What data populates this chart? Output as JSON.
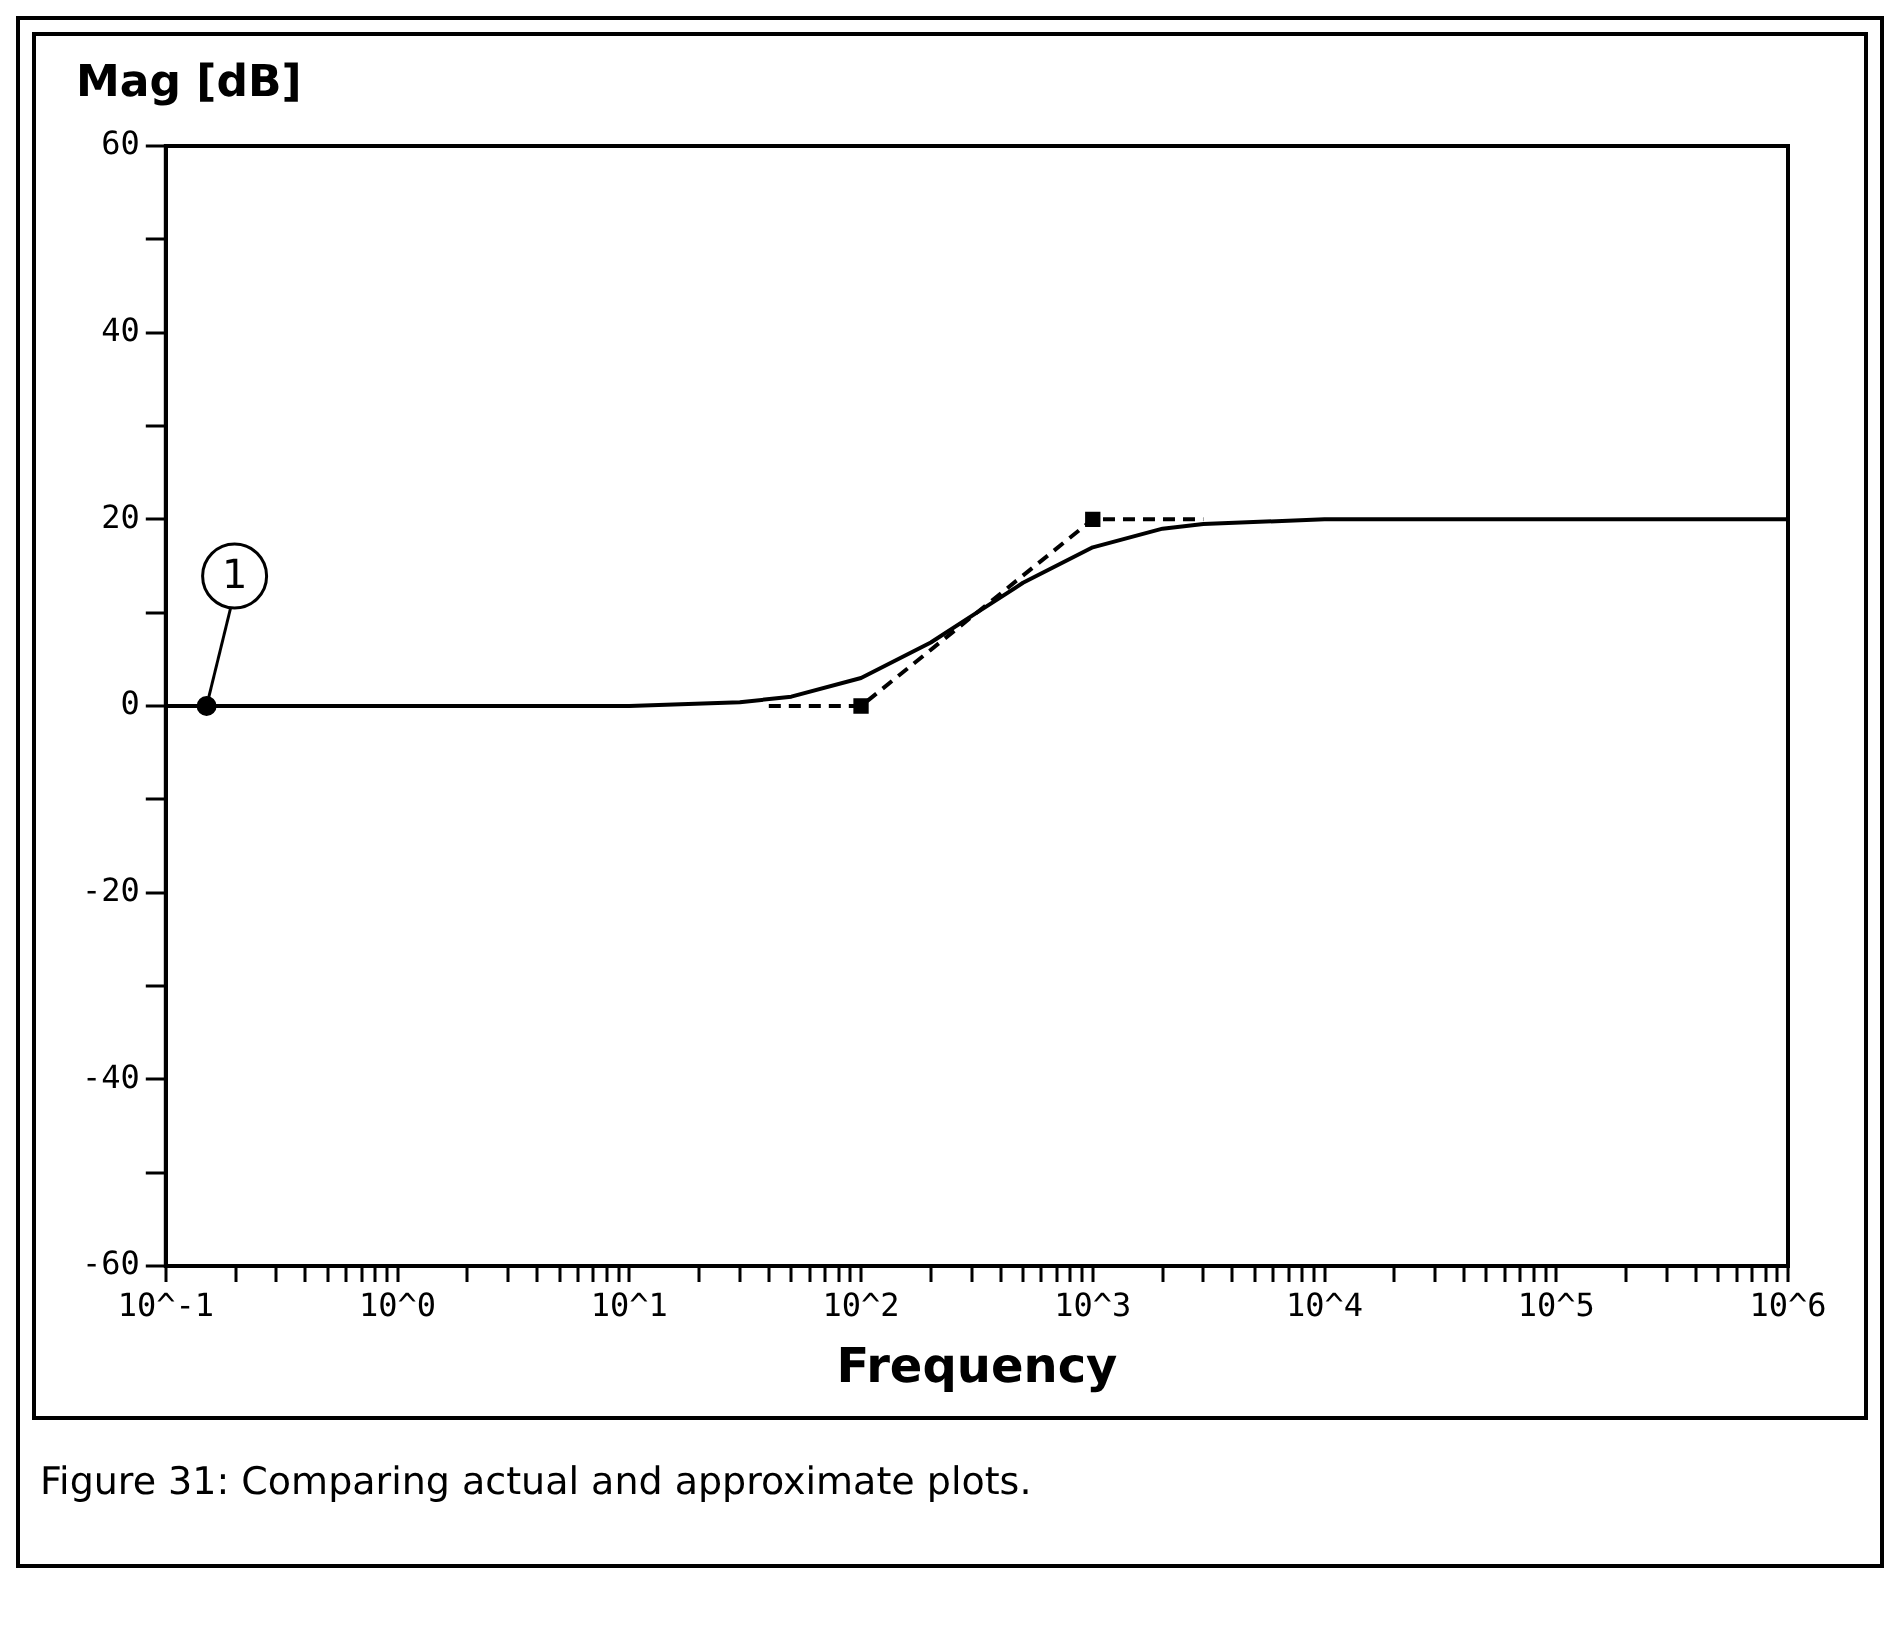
{
  "chart_data": {
    "type": "line",
    "ylabel": "Mag [dB]",
    "xlabel": "Frequency",
    "log": "x",
    "grid": false,
    "legend": false,
    "xlim": [
      0.1,
      1000000
    ],
    "ylim": [
      -60,
      60
    ],
    "xticks": [
      {
        "value": 0.1,
        "label": "10^-1"
      },
      {
        "value": 0.2,
        "label": null
      },
      {
        "value": 0.3,
        "label": null
      },
      {
        "value": 0.4,
        "label": null
      },
      {
        "value": 0.5,
        "label": null
      },
      {
        "value": 0.6,
        "label": null
      },
      {
        "value": 0.7,
        "label": null
      },
      {
        "value": 0.8,
        "label": null
      },
      {
        "value": 0.9,
        "label": null
      },
      {
        "value": 1,
        "label": "10^0"
      },
      {
        "value": 2,
        "label": null
      },
      {
        "value": 3,
        "label": null
      },
      {
        "value": 4,
        "label": null
      },
      {
        "value": 5,
        "label": null
      },
      {
        "value": 6,
        "label": null
      },
      {
        "value": 7,
        "label": null
      },
      {
        "value": 8,
        "label": null
      },
      {
        "value": 9,
        "label": null
      },
      {
        "value": 10,
        "label": "10^1"
      },
      {
        "value": 20,
        "label": null
      },
      {
        "value": 30,
        "label": null
      },
      {
        "value": 40,
        "label": null
      },
      {
        "value": 50,
        "label": null
      },
      {
        "value": 60,
        "label": null
      },
      {
        "value": 70,
        "label": null
      },
      {
        "value": 80,
        "label": null
      },
      {
        "value": 90,
        "label": null
      },
      {
        "value": 100,
        "label": "10^2"
      },
      {
        "value": 200,
        "label": null
      },
      {
        "value": 300,
        "label": null
      },
      {
        "value": 400,
        "label": null
      },
      {
        "value": 500,
        "label": null
      },
      {
        "value": 600,
        "label": null
      },
      {
        "value": 700,
        "label": null
      },
      {
        "value": 800,
        "label": null
      },
      {
        "value": 900,
        "label": null
      },
      {
        "value": 1000,
        "label": "10^3"
      },
      {
        "value": 2000,
        "label": null
      },
      {
        "value": 3000,
        "label": null
      },
      {
        "value": 4000,
        "label": null
      },
      {
        "value": 5000,
        "label": null
      },
      {
        "value": 6000,
        "label": null
      },
      {
        "value": 7000,
        "label": null
      },
      {
        "value": 8000,
        "label": null
      },
      {
        "value": 9000,
        "label": null
      },
      {
        "value": 10000,
        "label": "10^4"
      },
      {
        "value": 20000,
        "label": null
      },
      {
        "value": 30000,
        "label": null
      },
      {
        "value": 40000,
        "label": null
      },
      {
        "value": 50000,
        "label": null
      },
      {
        "value": 60000,
        "label": null
      },
      {
        "value": 70000,
        "label": null
      },
      {
        "value": 80000,
        "label": null
      },
      {
        "value": 90000,
        "label": null
      },
      {
        "value": 100000,
        "label": "10^5"
      },
      {
        "value": 200000,
        "label": null
      },
      {
        "value": 300000,
        "label": null
      },
      {
        "value": 400000,
        "label": null
      },
      {
        "value": 500000,
        "label": null
      },
      {
        "value": 600000,
        "label": null
      },
      {
        "value": 700000,
        "label": null
      },
      {
        "value": 800000,
        "label": null
      },
      {
        "value": 900000,
        "label": null
      },
      {
        "value": 1000000,
        "label": "10^6"
      }
    ],
    "yticks": [
      -60,
      {
        "value": -50,
        "label": null
      },
      -40,
      {
        "value": -30,
        "label": null
      },
      -20,
      {
        "value": -10,
        "label": null
      },
      0,
      {
        "value": 10,
        "label": null
      },
      20,
      {
        "value": 30,
        "label": null
      },
      40,
      {
        "value": 50,
        "label": null
      },
      60
    ],
    "series": [
      {
        "color": "#000000",
        "line_style": "solid",
        "marker": "none",
        "x": [
          0.1,
          10,
          30,
          50,
          100,
          200,
          316,
          500,
          1000,
          2000,
          3000,
          10000,
          1000000
        ],
        "values": [
          0,
          0,
          0.4,
          1,
          3,
          6.8,
          10,
          13.2,
          17,
          19,
          19.5,
          20,
          20
        ]
      },
      {
        "color": "#000000",
        "line_style": "dashed",
        "marker": "none",
        "x": [
          40,
          100,
          1000,
          3000
        ],
        "values": [
          0,
          0,
          20,
          20
        ]
      },
      {
        "type": "scatter",
        "color": "#000000",
        "marker": "square",
        "x": [
          100,
          1000
        ],
        "values": [
          0,
          20
        ]
      },
      {
        "type": "scatter",
        "color": "#000000",
        "marker": "circle",
        "x": [
          0.15
        ],
        "values": [
          0
        ]
      }
    ],
    "annotations": [
      {
        "text": "1",
        "x": 0.15,
        "y": 0
      },
      "Figure 31:  Comparing actual and approximate plots."
    ]
  }
}
